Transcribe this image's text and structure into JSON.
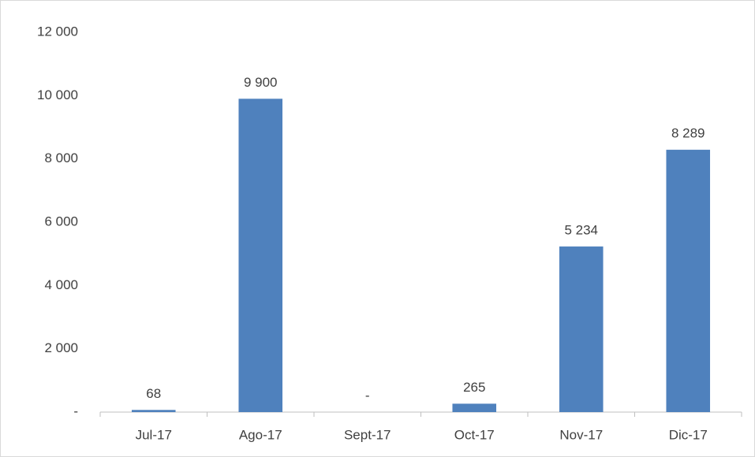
{
  "chart_data": {
    "type": "bar",
    "categories": [
      "Jul-17",
      "Ago-17",
      "Sept-17",
      "Oct-17",
      "Nov-17",
      "Dic-17"
    ],
    "values": [
      68,
      9900,
      0,
      265,
      5234,
      8289
    ],
    "value_labels": [
      "68",
      "9 900",
      "-",
      "265",
      "5 234",
      "8 289"
    ],
    "color": "#4f81bd",
    "ylim": [
      0,
      12000
    ],
    "yticks": [
      {
        "value": 0,
        "label": "-"
      },
      {
        "value": 2000,
        "label": "2 000"
      },
      {
        "value": 4000,
        "label": "4 000"
      },
      {
        "value": 6000,
        "label": "6 000"
      },
      {
        "value": 8000,
        "label": "8 000"
      },
      {
        "value": 10000,
        "label": "10 000"
      },
      {
        "value": 12000,
        "label": "12 000"
      }
    ],
    "grid": false
  }
}
